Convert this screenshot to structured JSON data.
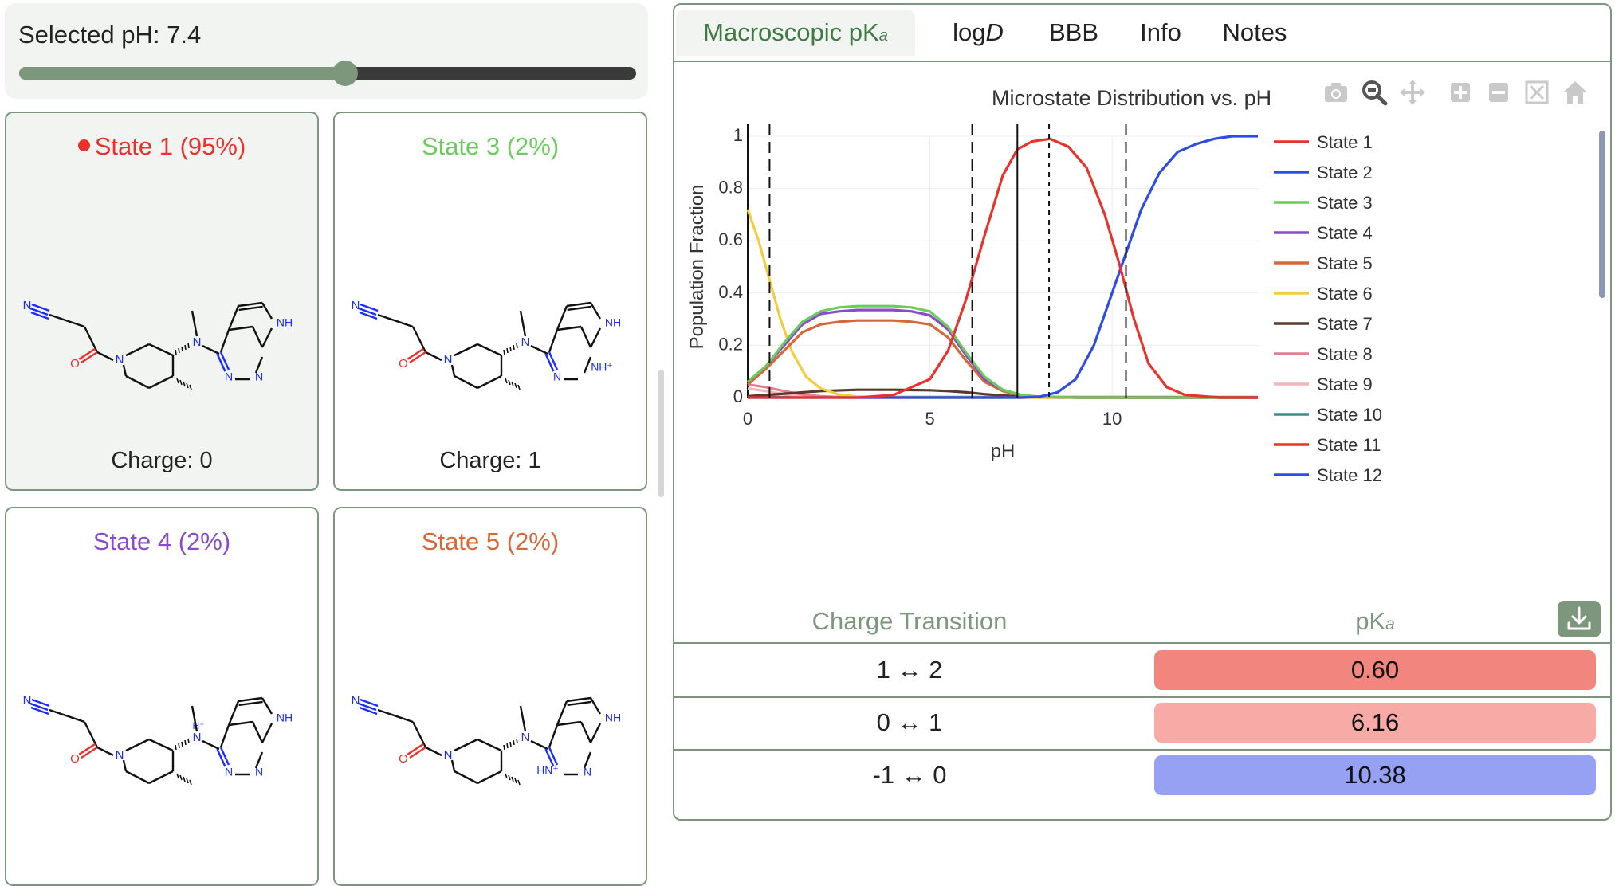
{
  "ph_panel": {
    "label": "Selected pH: 7.4",
    "value": 7.4,
    "min": 0,
    "max": 14
  },
  "states": [
    {
      "title": "State 1 (95%)",
      "charge": "Charge: 0",
      "color": "#e8322b",
      "selected": true,
      "variant": "neutral"
    },
    {
      "title": "State 3 (2%)",
      "charge": "Charge: 1",
      "color": "#6acc5c",
      "selected": false,
      "variant": "nh_plus_pyrimidine"
    },
    {
      "title": "State 4 (2%)",
      "charge": "",
      "color": "#8a4bc9",
      "selected": false,
      "variant": "nh_plus_amine"
    },
    {
      "title": "State 5 (2%)",
      "charge": "",
      "color": "#d4683a",
      "selected": false,
      "variant": "hn_plus_pyrimidine"
    }
  ],
  "molecule_labels": {
    "nitrile_n": "N",
    "carbonyl_o": "O",
    "ring_n": "N",
    "amine_n": "N",
    "pyrimidine_n": "N",
    "pyrrole_nh": "NH",
    "nh_plus": "NH⁺",
    "hn_plus": "HN⁺",
    "n_h_plus": "H⁺"
  },
  "tabs": [
    {
      "label": "Macroscopic pK",
      "sub": "a",
      "active": true
    },
    {
      "label": "log",
      "italic": "D",
      "active": false
    },
    {
      "label": "BBB",
      "active": false
    },
    {
      "label": "Info",
      "active": false
    },
    {
      "label": "Notes",
      "active": false
    }
  ],
  "toolbar_icons": [
    "camera-icon",
    "zoom-icon",
    "pan-icon",
    "zoom-in-icon",
    "zoom-out-icon",
    "autoscale-icon",
    "home-icon"
  ],
  "chart_data": {
    "type": "line",
    "title": "Microstate Distribution vs. pH",
    "xlabel": "pH",
    "ylabel": "Population Fraction",
    "xlim": [
      0,
      14
    ],
    "ylim": [
      0,
      1
    ],
    "xticks": [
      0,
      5,
      10
    ],
    "yticks": [
      0,
      0.2,
      0.4,
      0.6,
      0.8,
      1
    ],
    "ytick_labels": [
      "0",
      "0.2",
      "0.4",
      "0.6",
      "0.8",
      "1"
    ],
    "grid": true,
    "legend_position": "right",
    "dashed_lines_x": [
      0.6,
      6.16,
      10.38
    ],
    "dotted_line_x": 8.27,
    "solid_line_x": 7.4,
    "series": [
      {
        "name": "State 1",
        "color": "#e8322b",
        "x": [
          0,
          3,
          4,
          5,
          5.5,
          6,
          6.5,
          7,
          7.4,
          7.8,
          8.3,
          8.8,
          9.3,
          9.8,
          10.2,
          10.6,
          11,
          11.5,
          12,
          13,
          14
        ],
        "values": [
          0,
          0,
          0.01,
          0.07,
          0.18,
          0.38,
          0.62,
          0.85,
          0.95,
          0.98,
          0.99,
          0.96,
          0.88,
          0.7,
          0.51,
          0.3,
          0.13,
          0.04,
          0.01,
          0,
          0
        ]
      },
      {
        "name": "State 2",
        "color": "#2f4be6",
        "x": [
          0,
          7.5,
          8,
          8.5,
          9,
          9.5,
          10,
          10.4,
          10.8,
          11.3,
          11.8,
          12.3,
          12.8,
          13.3,
          14
        ],
        "values": [
          0,
          0,
          0.003,
          0.02,
          0.07,
          0.2,
          0.4,
          0.56,
          0.72,
          0.86,
          0.94,
          0.97,
          0.99,
          1,
          1
        ]
      },
      {
        "name": "State 3",
        "color": "#6acc5c",
        "x": [
          0,
          0.5,
          1,
          1.5,
          2,
          2.5,
          3,
          3.5,
          4,
          4.5,
          5,
          5.5,
          6,
          6.5,
          7,
          7.5,
          8,
          9,
          14
        ],
        "values": [
          0.06,
          0.12,
          0.21,
          0.29,
          0.33,
          0.345,
          0.35,
          0.35,
          0.35,
          0.345,
          0.33,
          0.27,
          0.17,
          0.08,
          0.03,
          0.01,
          0.003,
          0,
          0
        ]
      },
      {
        "name": "State 4",
        "color": "#8a4bc9",
        "x": [
          0,
          0.5,
          1,
          1.5,
          2,
          2.5,
          3,
          3.5,
          4,
          4.5,
          5,
          5.5,
          6,
          6.5,
          7,
          7.5,
          8,
          9,
          14
        ],
        "values": [
          0.06,
          0.12,
          0.2,
          0.28,
          0.32,
          0.33,
          0.335,
          0.335,
          0.335,
          0.33,
          0.315,
          0.26,
          0.16,
          0.07,
          0.03,
          0.01,
          0.003,
          0,
          0
        ]
      },
      {
        "name": "State 5",
        "color": "#d4683a",
        "x": [
          0,
          0.5,
          1,
          1.5,
          2,
          2.5,
          3,
          3.5,
          4,
          4.5,
          5,
          5.5,
          6,
          6.5,
          7,
          7.5,
          8,
          9,
          14
        ],
        "values": [
          0.05,
          0.11,
          0.18,
          0.25,
          0.28,
          0.29,
          0.295,
          0.295,
          0.295,
          0.29,
          0.28,
          0.23,
          0.14,
          0.06,
          0.025,
          0.008,
          0.002,
          0,
          0
        ]
      },
      {
        "name": "State 6",
        "color": "#f3cd3f",
        "x": [
          0,
          0.3,
          0.6,
          0.9,
          1.2,
          1.6,
          2,
          2.5,
          3,
          3.5,
          4,
          14
        ],
        "values": [
          0.72,
          0.6,
          0.45,
          0.3,
          0.18,
          0.08,
          0.035,
          0.012,
          0.004,
          0.001,
          0,
          0
        ]
      },
      {
        "name": "State 7",
        "color": "#5a3a2d",
        "x": [
          0,
          1,
          2,
          3,
          4,
          5,
          5.5,
          6,
          6.5,
          7,
          7.5,
          8,
          9,
          14
        ],
        "values": [
          0.005,
          0.015,
          0.025,
          0.03,
          0.03,
          0.028,
          0.025,
          0.02,
          0.013,
          0.008,
          0.004,
          0.002,
          0,
          0
        ]
      },
      {
        "name": "State 8",
        "color": "#e37f94",
        "x": [
          0,
          0.5,
          1,
          1.5,
          2,
          2.5,
          3,
          14
        ],
        "values": [
          0.05,
          0.04,
          0.025,
          0.012,
          0.005,
          0.002,
          0,
          0
        ]
      },
      {
        "name": "State 9",
        "color": "#f0b6bc",
        "x": [
          0,
          0.5,
          1,
          1.5,
          2,
          2.5,
          14
        ],
        "values": [
          0.035,
          0.025,
          0.013,
          0.005,
          0.002,
          0,
          0
        ]
      },
      {
        "name": "State 10",
        "color": "#3d8c8c",
        "x": [
          0,
          14
        ],
        "values": [
          0.002,
          0.002
        ]
      },
      {
        "name": "State 11",
        "color": "#e8322b",
        "x": [
          0,
          14
        ],
        "values": [
          0.001,
          0.001
        ]
      },
      {
        "name": "State 12",
        "color": "#2f4be6",
        "x": [
          0,
          14
        ],
        "values": [
          0.001,
          0.001
        ]
      }
    ]
  },
  "table": {
    "header_transition": "Charge Transition",
    "header_pka": "pK",
    "header_pka_sub": "a",
    "rows": [
      {
        "transition": "1 ↔ 2",
        "pka": "0.60",
        "color": "#f2857e"
      },
      {
        "transition": "0 ↔ 1",
        "pka": "6.16",
        "color": "#f7aaa6"
      },
      {
        "transition": "-1 ↔ 0",
        "pka": "10.38",
        "color": "#96a1f4"
      }
    ]
  }
}
